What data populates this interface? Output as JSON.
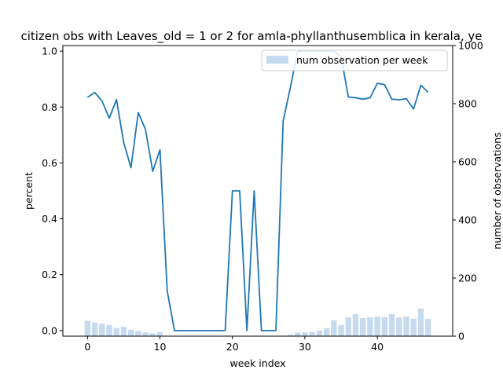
{
  "chart_data": {
    "type": "bar+line",
    "title": "citizen obs with Leaves_old = 1 or 2 for amla-phyllanthusemblica in kerala, ye",
    "xlabel": "week index",
    "ylabel_left": "percent",
    "ylabel_right": "number of observations",
    "xlim": [
      -3.4,
      50.4
    ],
    "ylim_left": [
      -0.02,
      1.02
    ],
    "ylim_right": [
      0,
      1000
    ],
    "xticks": [
      "0",
      "10",
      "20",
      "30",
      "40"
    ],
    "yticks_left": [
      "0.0",
      "0.2",
      "0.4",
      "0.6",
      "0.8",
      "1.0"
    ],
    "yticks_right": [
      "0",
      "200",
      "400",
      "600",
      "800",
      "1000"
    ],
    "grid": false,
    "legend_position": "top-right",
    "colors": {
      "line": "#1f77b4",
      "bar": "#c6dbef"
    },
    "series": [
      {
        "name": "num observation per week",
        "kind": "bar",
        "axis": "right",
        "x": [
          0,
          1,
          2,
          3,
          4,
          5,
          6,
          7,
          8,
          9,
          10,
          11,
          12,
          13,
          14,
          15,
          16,
          17,
          18,
          19,
          20,
          21,
          22,
          23,
          24,
          25,
          26,
          27,
          28,
          29,
          30,
          31,
          32,
          33,
          34,
          35,
          36,
          37,
          38,
          39,
          40,
          41,
          42,
          43,
          44,
          45,
          46,
          47
        ],
        "values": [
          53,
          47,
          43,
          38,
          28,
          32,
          22,
          18,
          13,
          10,
          14,
          0,
          0,
          0,
          0,
          0,
          0,
          0,
          0,
          0,
          0,
          0,
          0,
          0,
          0,
          0,
          0,
          0,
          5,
          12,
          13,
          15,
          19,
          28,
          55,
          38,
          65,
          76,
          62,
          65,
          67,
          66,
          76,
          64,
          68,
          60,
          95,
          60
        ]
      },
      {
        "kind": "line",
        "axis": "left",
        "x": [
          0,
          1,
          2,
          3,
          4,
          5,
          6,
          7,
          8,
          9,
          10,
          11,
          12,
          13,
          14,
          15,
          16,
          17,
          18,
          19,
          20,
          21,
          22,
          23,
          24,
          25,
          26,
          27,
          28,
          29,
          30,
          31,
          32,
          33,
          34,
          35,
          36,
          37,
          38,
          39,
          40,
          41,
          42,
          43,
          44,
          45,
          46,
          47
        ],
        "values": [
          0.835,
          0.852,
          0.822,
          0.76,
          0.827,
          0.672,
          0.583,
          0.78,
          0.72,
          0.57,
          0.647,
          0.142,
          0.0,
          0.0,
          0.0,
          0.0,
          0.0,
          0.0,
          0.0,
          0.0,
          0.5,
          0.5,
          0.0,
          0.5,
          0.0,
          0.0,
          0.0,
          0.75,
          0.87,
          1.0,
          1.0,
          1.0,
          1.0,
          1.0,
          1.0,
          0.98,
          0.836,
          0.833,
          0.828,
          0.833,
          0.885,
          0.88,
          0.828,
          0.826,
          0.83,
          0.793,
          0.878,
          0.853
        ]
      }
    ]
  }
}
